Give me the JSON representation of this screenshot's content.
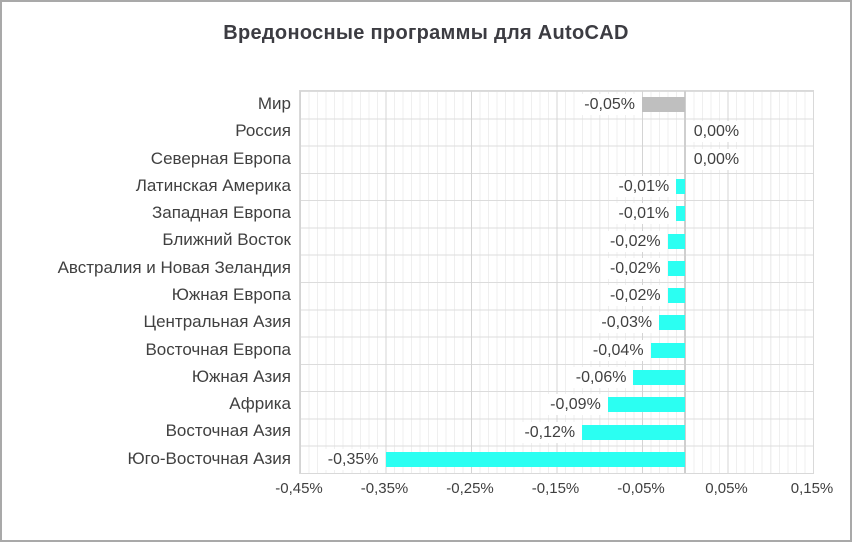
{
  "title": "Вредоносные программы для AutoCAD",
  "chart_data": {
    "type": "bar",
    "orientation": "horizontal",
    "title": "Вредоносные программы для AutoCAD",
    "categories": [
      "Мир",
      "Россия",
      "Северная Европа",
      "Латинская Америка",
      "Западная Европа",
      "Ближний Восток",
      "Австралия и Новая Зеландия",
      "Южная Европа",
      "Центральная Азия",
      "Восточная Европа",
      "Южная Азия",
      "Африка",
      "Восточная Азия",
      "Юго-Восточная Азия"
    ],
    "values": [
      -0.05,
      0.0,
      0.0,
      -0.01,
      -0.01,
      -0.02,
      -0.02,
      -0.02,
      -0.03,
      -0.04,
      -0.06,
      -0.09,
      -0.12,
      -0.35
    ],
    "value_labels": [
      "-0,05%",
      "0,00%",
      "0,00%",
      "-0,01%",
      "-0,01%",
      "-0,02%",
      "-0,02%",
      "-0,02%",
      "-0,03%",
      "-0,04%",
      "-0,06%",
      "-0,09%",
      "-0,12%",
      "-0,35%"
    ],
    "unit": "%",
    "xlim": [
      -0.45,
      0.15
    ],
    "x_ticks": [
      -0.45,
      -0.35,
      -0.25,
      -0.15,
      -0.05,
      0.05,
      0.15
    ],
    "x_tick_labels": [
      "-0,45%",
      "-0,35%",
      "-0,25%",
      "-0,15%",
      "-0,05%",
      "0,05%",
      "0,15%"
    ],
    "grid": "on",
    "legend": "none",
    "bar_colors": {
      "default": "#2bfff2",
      "overrides": {
        "Мир": "#bfbfbf"
      }
    }
  },
  "colors": {
    "accent_cyan": "#2bfff2",
    "world_bar_gray": "#bfbfbf",
    "text": "#404040",
    "title_text": "#3c3c42",
    "grid_major": "#d4d4d4",
    "grid_minor": "#efefef",
    "grid_row": "#dcdcdc",
    "axis_zero_line": "#cfcfcf",
    "plot_border": "#d9d9d9",
    "outer_border": "#a9a9a9",
    "background": "#ffffff"
  }
}
